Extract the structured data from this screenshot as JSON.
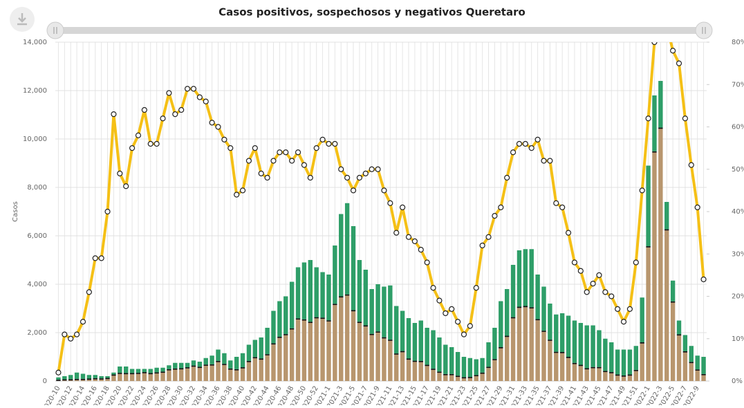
{
  "chart_data": {
    "type": "bar",
    "title": "Casos positivos, sospechosos y negativos Queretaro",
    "y_label": "Casos",
    "categories": [
      "2020-10",
      null,
      "2020-12",
      null,
      "2020-14",
      null,
      "2020-16",
      null,
      "2020-18",
      null,
      "2020-20",
      null,
      "2020-22",
      null,
      "2020-24",
      null,
      "2020-26",
      null,
      "2020-28",
      null,
      "2020-30",
      null,
      "2020-32",
      null,
      "2020-34",
      null,
      "2020-36",
      null,
      "2020-38",
      null,
      "2020-40",
      null,
      "2020-42",
      null,
      "2020-44",
      null,
      "2020-46",
      null,
      "2020-48",
      null,
      "2020-50",
      null,
      "2020-52",
      null,
      "2021-1",
      null,
      "2021-3",
      null,
      "2021-5",
      null,
      "2021-7",
      null,
      "2021-9",
      null,
      "2021-11",
      null,
      "2021-13",
      null,
      "2021-15",
      null,
      "2021-17",
      null,
      "2021-19",
      null,
      "2021-21",
      null,
      "2021-23",
      null,
      "2021-25",
      null,
      "2021-27",
      null,
      "2021-29",
      null,
      "2021-31",
      null,
      "2021-33",
      null,
      "2021-35",
      null,
      "2021-37",
      null,
      "2021-39",
      null,
      "2021-41",
      null,
      "2021-43",
      null,
      "2021-45",
      null,
      "2021-47",
      null,
      "2021-49",
      null,
      "2021-51",
      null,
      "2022-1",
      null,
      "2022-3",
      null,
      "2022-5",
      null,
      "2022-7",
      null,
      "2022-9",
      null
    ],
    "series": [
      {
        "color": "#b8966e",
        "values": [
          5,
          20,
          25,
          40,
          40,
          50,
          70,
          60,
          80,
          220,
          290,
          280,
          280,
          290,
          320,
          280,
          310,
          340,
          440,
          470,
          480,
          520,
          590,
          540,
          630,
          640,
          780,
          660,
          470,
          440,
          520,
          780,
          940,
          880,
          1060,
          1510,
          1780,
          1890,
          2130,
          2540,
          2500,
          2400,
          2590,
          2570,
          2460,
          3140,
          3450,
          3530,
          2880,
          2400,
          2250,
          1900,
          2000,
          1760,
          1660,
          1090,
          1190,
          880,
          790,
          780,
          620,
          460,
          340,
          240,
          240,
          170,
          110,
          120,
          200,
          300,
          540,
          860,
          1350,
          1820,
          2590,
          3020,
          3050,
          3000,
          2510,
          2030,
          1660,
          1160,
          1150,
          950,
          700,
          620,
          480,
          530,
          530,
          370,
          320,
          220,
          180,
          220,
          410,
          1550,
          5520,
          9440,
          10420,
          6220,
          3240,
          1880,
          1180,
          740,
          430,
          240
        ]
      },
      {
        "color": "#111111",
        "values": [
          50,
          50,
          50,
          50,
          50,
          50,
          50,
          50,
          50,
          50,
          50,
          50,
          50,
          50,
          50,
          50,
          50,
          50,
          50,
          50,
          50,
          50,
          50,
          50,
          50,
          50,
          50,
          50,
          50,
          50,
          50,
          50,
          50,
          50,
          50,
          50,
          50,
          50,
          50,
          50,
          50,
          50,
          50,
          50,
          50,
          50,
          50,
          50,
          50,
          50,
          50,
          50,
          50,
          50,
          50,
          50,
          50,
          50,
          50,
          50,
          50,
          50,
          50,
          50,
          50,
          50,
          50,
          50,
          50,
          50,
          50,
          50,
          50,
          50,
          50,
          50,
          50,
          50,
          50,
          50,
          50,
          50,
          50,
          50,
          50,
          50,
          50,
          50,
          50,
          50,
          50,
          50,
          50,
          50,
          50,
          50,
          50,
          50,
          50,
          50,
          50,
          50,
          50,
          50,
          50,
          50
        ]
      },
      {
        "color": "#2e9e68",
        "values": [
          95,
          130,
          175,
          260,
          210,
          150,
          130,
          90,
          70,
          80,
          260,
          270,
          170,
          160,
          130,
          170,
          190,
          160,
          160,
          230,
          220,
          180,
          210,
          210,
          270,
          360,
          470,
          440,
          330,
          510,
          580,
          670,
          710,
          870,
          1090,
          1340,
          1470,
          1560,
          1920,
          2110,
          2350,
          2550,
          2060,
          1880,
          1890,
          2410,
          3400,
          3770,
          3470,
          2550,
          2300,
          1850,
          1950,
          2090,
          2240,
          1960,
          1660,
          1670,
          1560,
          1670,
          1530,
          1590,
          1410,
          1210,
          1110,
          980,
          840,
          780,
          650,
          600,
          1010,
          1290,
          1900,
          1930,
          2160,
          2330,
          2350,
          2400,
          1840,
          1820,
          1490,
          1540,
          1600,
          1700,
          1750,
          1730,
          1770,
          1720,
          1520,
          1330,
          1230,
          1030,
          1070,
          1030,
          990,
          1850,
          3330,
          2310,
          1930,
          1130,
          860,
          570,
          670,
          660,
          570,
          710
        ]
      },
      {
        "type": "line",
        "axis": "y2",
        "color": "#f5c016",
        "values": [
          2,
          11,
          10,
          11,
          14,
          21,
          29,
          29,
          40,
          63,
          49,
          46,
          55,
          58,
          64,
          56,
          56,
          62,
          68,
          63,
          64,
          69,
          69,
          67,
          66,
          61,
          60,
          57,
          55,
          44,
          45,
          52,
          55,
          49,
          48,
          52,
          54,
          54,
          52,
          54,
          51,
          48,
          55,
          57,
          56,
          56,
          50,
          48,
          45,
          48,
          49,
          50,
          50,
          45,
          42,
          35,
          41,
          34,
          33,
          31,
          28,
          22,
          19,
          16,
          17,
          14,
          11,
          13,
          22,
          32,
          34,
          39,
          41,
          48,
          54,
          56,
          56,
          55,
          57,
          52,
          52,
          42,
          41,
          35,
          28,
          26,
          21,
          23,
          25,
          21,
          20,
          17,
          14,
          17,
          28,
          45,
          62,
          80,
          84,
          84,
          78,
          75,
          62,
          51,
          41,
          24
        ]
      }
    ],
    "ylim": [
      0,
      14000
    ],
    "yticks": [
      0,
      {
        "value": 2000,
        "label": "2,000"
      },
      {
        "value": 4000,
        "label": "4,000"
      },
      {
        "value": 6000,
        "label": "6,000"
      },
      {
        "value": 8000,
        "label": "8,000"
      },
      {
        "value": 10000,
        "label": "10,000"
      },
      {
        "value": 12000,
        "label": "12,000"
      },
      {
        "value": 14000,
        "label": "14,000"
      }
    ],
    "y2lim": [
      0,
      80
    ],
    "y2ticks": [
      {
        "value": 0,
        "label": "0%"
      },
      {
        "value": 10,
        "label": "10%"
      },
      {
        "value": 20,
        "label": "20%"
      },
      {
        "value": 30,
        "label": "30%"
      },
      {
        "value": 40,
        "label": "40%"
      },
      {
        "value": 50,
        "label": "50%"
      },
      {
        "value": 60,
        "label": "60%"
      },
      {
        "value": 70,
        "label": "70%"
      },
      {
        "value": 80,
        "label": "80%"
      }
    ],
    "grid": true
  }
}
